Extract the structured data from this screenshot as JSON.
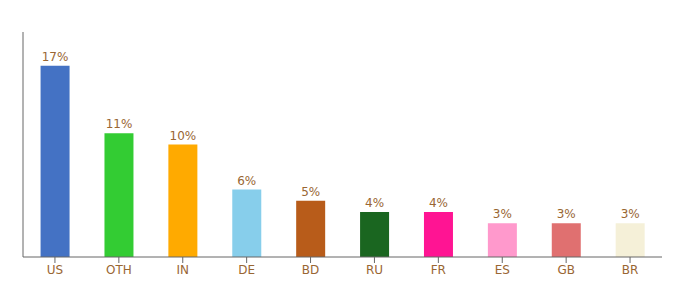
{
  "chart_data": {
    "type": "bar",
    "categories": [
      "US",
      "OTH",
      "IN",
      "DE",
      "BD",
      "RU",
      "FR",
      "ES",
      "GB",
      "BR"
    ],
    "values": [
      17,
      11,
      10,
      6,
      5,
      4,
      4,
      3,
      3,
      3
    ],
    "value_labels": [
      "17%",
      "11%",
      "10%",
      "6%",
      "5%",
      "4%",
      "4%",
      "3%",
      "3%",
      "3%"
    ],
    "colors": [
      "#4472c4",
      "#33cc33",
      "#ffaa00",
      "#87ceeb",
      "#b85c1a",
      "#1a6620",
      "#ff1493",
      "#ff99cc",
      "#e07070",
      "#f5f0d8"
    ],
    "ylim": [
      0,
      20
    ],
    "grid": false,
    "data_labels": true,
    "tick_labels": "x"
  }
}
